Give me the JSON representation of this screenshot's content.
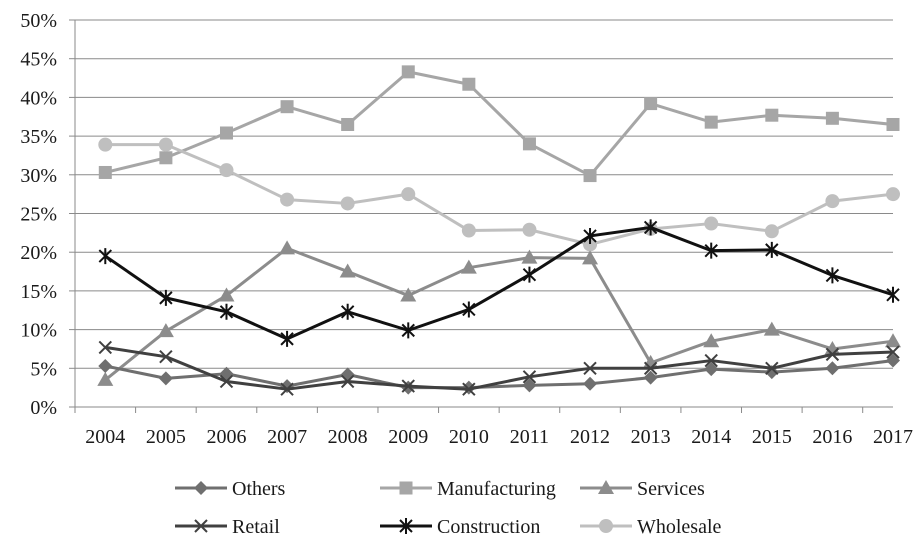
{
  "chart_data": {
    "type": "line",
    "title": "",
    "xlabel": "",
    "ylabel": "",
    "ylim": [
      0,
      50
    ],
    "ytick_labels": [
      "0%",
      "5%",
      "10%",
      "15%",
      "20%",
      "25%",
      "30%",
      "35%",
      "40%",
      "45%",
      "50%"
    ],
    "categories": [
      "2004",
      "2005",
      "2006",
      "2007",
      "2008",
      "2009",
      "2010",
      "2011",
      "2012",
      "2013",
      "2014",
      "2015",
      "2016",
      "2017"
    ],
    "grid": "horizontal",
    "legend_position": "bottom",
    "series": [
      {
        "name": "Others",
        "marker": "diamond",
        "color": "#6f6f6f",
        "values": [
          5.3,
          3.7,
          4.3,
          2.7,
          4.2,
          2.5,
          2.5,
          2.8,
          3.0,
          3.8,
          4.9,
          4.5,
          5.0,
          6.0
        ]
      },
      {
        "name": "Manufacturing",
        "marker": "square",
        "color": "#a6a6a6",
        "values": [
          30.3,
          32.2,
          35.4,
          38.8,
          36.5,
          43.3,
          41.7,
          34.0,
          29.9,
          39.2,
          36.8,
          37.7,
          37.3,
          36.5
        ]
      },
      {
        "name": "Services",
        "marker": "triangle",
        "color": "#8c8c8c",
        "values": [
          3.5,
          9.8,
          14.4,
          20.5,
          17.5,
          14.4,
          18.0,
          19.3,
          19.2,
          5.7,
          8.5,
          10.0,
          7.5,
          8.5
        ]
      },
      {
        "name": "Retail",
        "marker": "x",
        "color": "#404040",
        "values": [
          7.7,
          6.5,
          3.3,
          2.3,
          3.3,
          2.7,
          2.3,
          3.9,
          5.0,
          5.0,
          6.0,
          5.0,
          6.8,
          7.1
        ]
      },
      {
        "name": "Construction",
        "marker": "star",
        "color": "#111111",
        "values": [
          19.5,
          14.1,
          12.3,
          8.8,
          12.3,
          9.9,
          12.6,
          17.1,
          22.1,
          23.2,
          20.2,
          20.3,
          17.0,
          14.5
        ]
      },
      {
        "name": "Wholesale",
        "marker": "circle",
        "color": "#bfbfbf",
        "values": [
          33.9,
          33.9,
          30.6,
          26.8,
          26.3,
          27.5,
          22.8,
          22.9,
          21.0,
          23.0,
          23.7,
          22.7,
          26.6,
          27.5
        ]
      }
    ]
  }
}
